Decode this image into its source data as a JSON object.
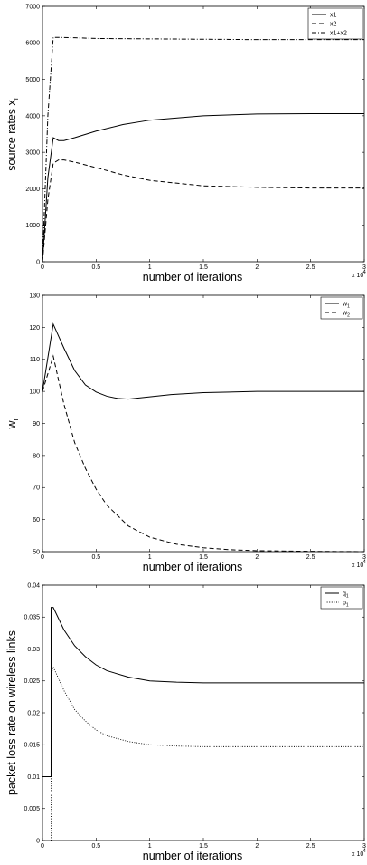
{
  "chart_data": [
    {
      "type": "line",
      "xlabel": "number of iterations",
      "ylabel": "source rates x",
      "ylabel_sub": "r",
      "x_exponent_base": "x 10",
      "x_exponent_power": "4",
      "xlim": [
        0,
        3
      ],
      "ylim": [
        0,
        7000
      ],
      "xticks": [
        "0",
        "0.5",
        "1",
        "1.5",
        "2",
        "2.5",
        "3"
      ],
      "yticks": [
        "0",
        "1000",
        "2000",
        "3000",
        "4000",
        "5000",
        "6000",
        "7000"
      ],
      "legend_position": "top-right",
      "series": [
        {
          "name": "x1",
          "style": "solid",
          "x": [
            0,
            0.05,
            0.1,
            0.15,
            0.2,
            0.3,
            0.5,
            0.75,
            1,
            1.5,
            2,
            2.5,
            3
          ],
          "y": [
            0,
            2300,
            3400,
            3320,
            3320,
            3400,
            3580,
            3760,
            3880,
            4000,
            4050,
            4060,
            4060
          ]
        },
        {
          "name": "x2",
          "style": "dashed",
          "x": [
            0,
            0.05,
            0.1,
            0.15,
            0.2,
            0.3,
            0.5,
            0.75,
            1,
            1.5,
            2,
            2.5,
            3
          ],
          "y": [
            0,
            1700,
            2700,
            2790,
            2790,
            2730,
            2580,
            2380,
            2230,
            2080,
            2040,
            2020,
            2020
          ]
        },
        {
          "name": "x1+x2",
          "style": "dashdot",
          "x": [
            0,
            0.05,
            0.1,
            0.15,
            0.3,
            0.5,
            1,
            1.5,
            2,
            2.5,
            3
          ],
          "y": [
            0,
            4000,
            6150,
            6150,
            6140,
            6120,
            6110,
            6100,
            6090,
            6090,
            6090
          ]
        }
      ]
    },
    {
      "type": "line",
      "xlabel": "number of iterations",
      "ylabel": "w",
      "ylabel_sub": "r",
      "x_exponent_base": "x 10",
      "x_exponent_power": "4",
      "xlim": [
        0,
        3
      ],
      "ylim": [
        50,
        130
      ],
      "xticks": [
        "0",
        "0.5",
        "1",
        "1.5",
        "2",
        "2.5",
        "3"
      ],
      "yticks": [
        "50",
        "60",
        "70",
        "80",
        "90",
        "100",
        "110",
        "120",
        "130"
      ],
      "legend_position": "top-right",
      "series": [
        {
          "name": "w",
          "name_sub": "1",
          "style": "solid",
          "x": [
            0,
            0.05,
            0.1,
            0.2,
            0.3,
            0.4,
            0.5,
            0.6,
            0.7,
            0.8,
            1,
            1.2,
            1.5,
            2,
            2.5,
            3
          ],
          "y": [
            100,
            110.5,
            121,
            113.5,
            106.5,
            102,
            99.8,
            98.5,
            97.8,
            97.6,
            98.3,
            99,
            99.6,
            100,
            100,
            100
          ]
        },
        {
          "name": "w",
          "name_sub": "2",
          "style": "dashed",
          "x": [
            0,
            0.05,
            0.1,
            0.2,
            0.3,
            0.4,
            0.5,
            0.6,
            0.8,
            1,
            1.25,
            1.5,
            1.75,
            2,
            2.5,
            3
          ],
          "y": [
            100,
            105.5,
            111,
            96,
            84,
            76,
            69.5,
            64.5,
            58,
            54.5,
            52.3,
            51.2,
            50.6,
            50.3,
            50.1,
            50
          ]
        }
      ]
    },
    {
      "type": "line",
      "xlabel": "number of iterations",
      "ylabel": "packet loss rate on wireless links",
      "x_exponent_base": "x 10",
      "x_exponent_power": "4",
      "xlim": [
        0,
        3
      ],
      "ylim": [
        0,
        0.04
      ],
      "xticks": [
        "0",
        "0.5",
        "1",
        "1.5",
        "2",
        "2.5",
        "3"
      ],
      "yticks": [
        "0",
        "0.005",
        "0.01",
        "0.015",
        "0.02",
        "0.025",
        "0.03",
        "0.035",
        "0.04"
      ],
      "legend_position": "top-right",
      "series": [
        {
          "name": "q",
          "name_sub": "1",
          "style": "solid",
          "x": [
            0,
            0.08,
            0.08,
            0.1,
            0.2,
            0.3,
            0.4,
            0.5,
            0.6,
            0.8,
            1,
            1.25,
            1.5,
            2,
            2.5,
            3
          ],
          "y": [
            0.01,
            0.01,
            0.0365,
            0.0365,
            0.033,
            0.0305,
            0.0288,
            0.0275,
            0.0266,
            0.0256,
            0.025,
            0.0248,
            0.0247,
            0.0247,
            0.0247,
            0.0247
          ]
        },
        {
          "name": "p",
          "name_sub": "1",
          "style": "dotted",
          "x": [
            0.08,
            0.08,
            0.1,
            0.2,
            0.3,
            0.4,
            0.5,
            0.6,
            0.8,
            1,
            1.25,
            1.5,
            2,
            2.5,
            3
          ],
          "y": [
            0,
            0.026,
            0.0272,
            0.0235,
            0.0205,
            0.0187,
            0.0173,
            0.0164,
            0.0155,
            0.015,
            0.0148,
            0.0147,
            0.0147,
            0.0147,
            0.0147
          ]
        }
      ]
    }
  ]
}
